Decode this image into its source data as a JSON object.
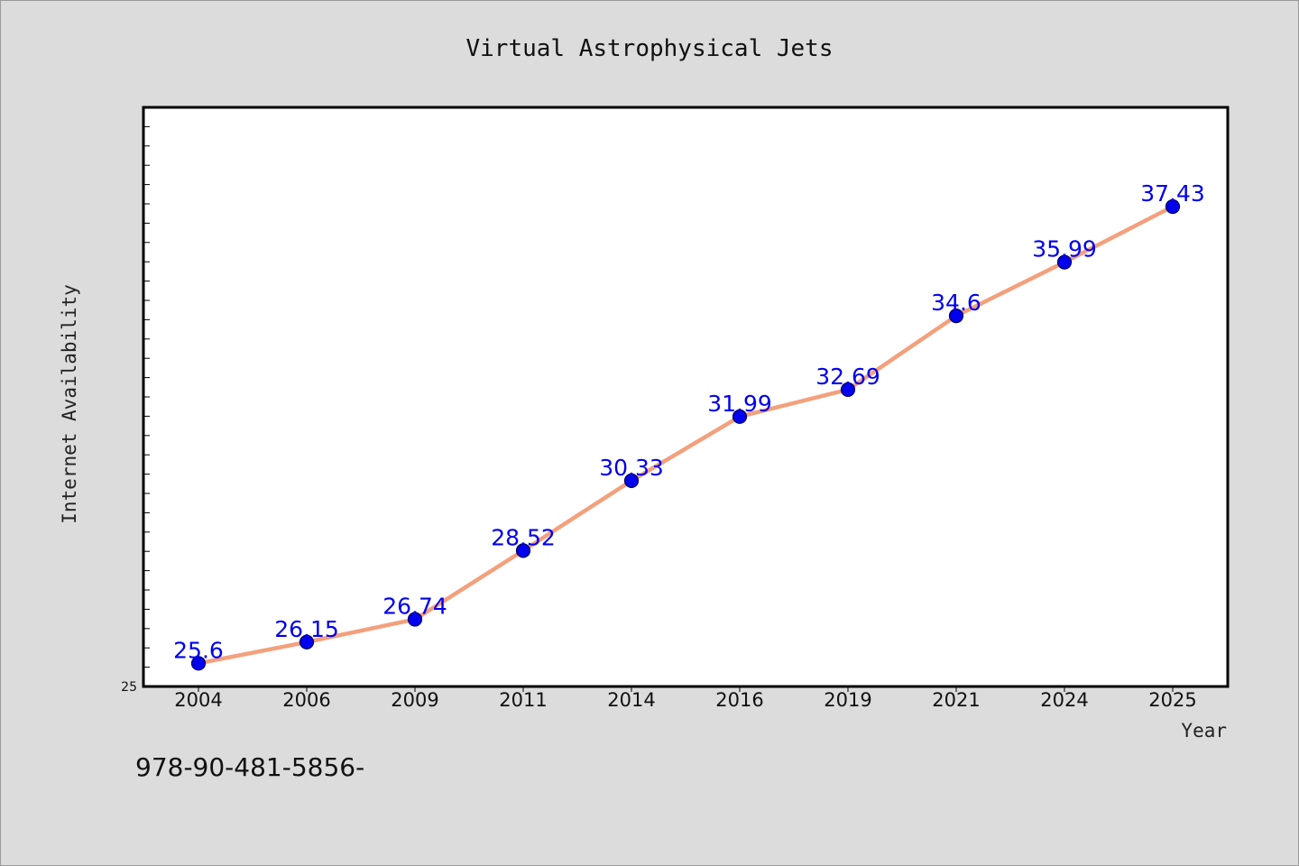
{
  "chart_data": {
    "type": "line",
    "title": "Virtual Astrophysical Jets",
    "xlabel": "Year",
    "ylabel": "Internet Availability",
    "categories": [
      "2004",
      "2006",
      "2009",
      "2011",
      "2014",
      "2016",
      "2019",
      "2021",
      "2024",
      "2025"
    ],
    "series": [
      {
        "values": [
          25.6,
          26.15,
          26.74,
          28.52,
          30.33,
          31.99,
          32.69,
          34.6,
          35.99,
          37.43
        ],
        "labels": [
          "25.6",
          "26.15",
          "26.74",
          "28.52",
          "30.33",
          "31.99",
          "32.69",
          "34.6",
          "35.99",
          "37.43"
        ]
      }
    ],
    "ylim": [
      25,
      40
    ],
    "yticks_labeled": [
      "25"
    ],
    "grid": false,
    "legend": "none",
    "colors": {
      "line": "#f4a07c",
      "marker": "#0000ee",
      "marker_edge": "#000055",
      "data_label": "#0000ee",
      "plot_bg": "#ffffff",
      "page_bg": "#dcdcdc"
    }
  },
  "footnote": "978-90-481-5856-"
}
